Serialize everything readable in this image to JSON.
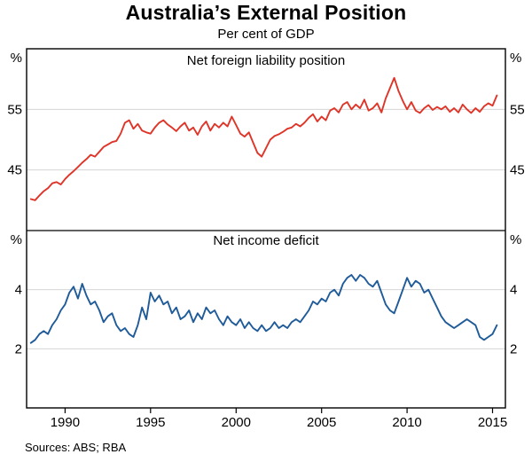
{
  "title": "Australia’s External Position",
  "subtitle": "Per cent of GDP",
  "sources": "Sources:  ABS; RBA",
  "chart_data": {
    "type": "line",
    "title": "Australia’s External Position",
    "subtitle": "Per cent of GDP",
    "x_start": 1988.0,
    "x_step": 0.25,
    "xlim": [
      1987.75,
      2015.75
    ],
    "x_ticks": [
      1990,
      1995,
      2000,
      2005,
      2010,
      2015
    ],
    "grid": true,
    "panels": [
      {
        "label": "Net foreign liability position",
        "unit": "%",
        "color": "#df3428",
        "ylim": [
          35,
          65
        ],
        "y_ticks": [
          45,
          55
        ],
        "values": [
          40.2,
          40.0,
          40.8,
          41.5,
          42.0,
          42.8,
          43.0,
          42.6,
          43.5,
          44.2,
          44.8,
          45.5,
          46.2,
          46.8,
          47.5,
          47.2,
          48.0,
          48.8,
          49.2,
          49.6,
          49.8,
          51.0,
          52.8,
          53.2,
          51.8,
          52.6,
          51.5,
          51.2,
          51.0,
          52.0,
          52.8,
          53.2,
          52.5,
          52.0,
          51.4,
          52.2,
          52.8,
          51.5,
          52.0,
          50.8,
          52.2,
          53.0,
          51.5,
          52.6,
          52.0,
          52.8,
          52.2,
          53.8,
          52.4,
          51.0,
          50.5,
          51.2,
          49.5,
          47.8,
          47.2,
          48.6,
          50.0,
          50.6,
          50.9,
          51.3,
          51.8,
          52.0,
          52.6,
          52.2,
          52.8,
          53.6,
          54.2,
          53.0,
          53.8,
          53.2,
          54.8,
          55.2,
          54.5,
          55.8,
          56.2,
          55.0,
          55.8,
          55.2,
          56.6,
          54.8,
          55.2,
          56.0,
          54.5,
          56.8,
          58.5,
          60.2,
          58.0,
          56.4,
          55.0,
          56.2,
          54.8,
          54.4,
          55.2,
          55.7,
          54.9,
          55.4,
          55.0,
          55.5,
          54.6,
          55.2,
          54.5,
          55.8,
          55.0,
          54.4,
          55.2,
          54.6,
          55.5,
          56.0,
          55.6,
          57.3
        ]
      },
      {
        "label": "Net income deficit",
        "unit": "%",
        "color": "#1f5b99",
        "ylim": [
          0,
          6
        ],
        "y_ticks": [
          2,
          4
        ],
        "values": [
          2.2,
          2.3,
          2.5,
          2.6,
          2.5,
          2.8,
          3.0,
          3.3,
          3.5,
          3.9,
          4.1,
          3.7,
          4.2,
          3.8,
          3.5,
          3.6,
          3.3,
          2.9,
          3.1,
          3.2,
          2.8,
          2.6,
          2.7,
          2.5,
          2.4,
          2.8,
          3.4,
          3.0,
          3.9,
          3.6,
          3.8,
          3.5,
          3.6,
          3.2,
          3.4,
          3.0,
          3.1,
          3.3,
          2.9,
          3.2,
          3.0,
          3.4,
          3.2,
          3.3,
          3.0,
          2.8,
          3.1,
          2.9,
          2.8,
          3.0,
          2.7,
          2.9,
          2.7,
          2.6,
          2.8,
          2.6,
          2.7,
          2.9,
          2.7,
          2.8,
          2.7,
          2.9,
          3.0,
          2.9,
          3.1,
          3.3,
          3.6,
          3.5,
          3.7,
          3.6,
          3.9,
          4.0,
          3.8,
          4.2,
          4.4,
          4.5,
          4.3,
          4.5,
          4.4,
          4.2,
          4.1,
          4.3,
          3.9,
          3.5,
          3.3,
          3.2,
          3.6,
          4.0,
          4.4,
          4.1,
          4.3,
          4.2,
          3.9,
          4.0,
          3.7,
          3.4,
          3.1,
          2.9,
          2.8,
          2.7,
          2.8,
          2.9,
          3.0,
          2.9,
          2.8,
          2.4,
          2.3,
          2.4,
          2.5,
          2.8
        ]
      }
    ],
    "sources": "Sources:  ABS; RBA"
  }
}
